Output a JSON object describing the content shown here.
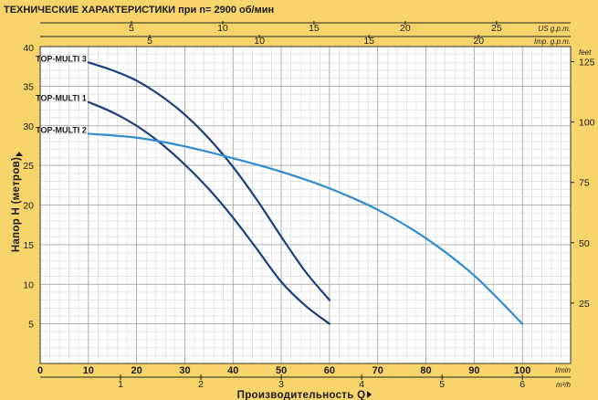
{
  "chart_data": {
    "type": "line",
    "title": "ТЕХНИЧЕСКИЕ ХАРАКТЕРИСТИКИ при n= 2900 об/мин",
    "xlabel": "Производительность Q",
    "ylabel": "Напор H (метров)",
    "x_unit": "l/min",
    "x2_unit": "m³/h",
    "top_axis1_unit": "US g.p.m.",
    "top_axis2_unit": "Imp. g.p.m.",
    "y2_unit": "feet",
    "xlim": [
      0,
      110
    ],
    "ylim": [
      0,
      40
    ],
    "x_ticks": [
      0,
      10,
      20,
      30,
      40,
      50,
      60,
      70,
      80,
      90,
      100
    ],
    "y_ticks": [
      5,
      10,
      15,
      20,
      25,
      30,
      35,
      40
    ],
    "x2_ticks": [
      1,
      2,
      3,
      4,
      5,
      6
    ],
    "top_axis1_ticks": [
      5,
      10,
      15,
      20,
      25
    ],
    "top_axis2_ticks": [
      5,
      10,
      15,
      20
    ],
    "y2_ticks": [
      25,
      50,
      75,
      100,
      125
    ],
    "grid": true,
    "series": [
      {
        "name": "TOP-MULTI 3",
        "color": "#1a3f7a",
        "x": [
          10,
          15,
          20,
          25,
          30,
          35,
          40,
          45,
          50,
          55,
          60
        ],
        "y": [
          38,
          37,
          35.7,
          33.8,
          31.4,
          28.4,
          24.8,
          20.6,
          16,
          11.6,
          8
        ]
      },
      {
        "name": "TOP-MULTI 1",
        "color": "#1a3f7a",
        "x": [
          10,
          15,
          20,
          25,
          30,
          35,
          40,
          45,
          50,
          55,
          60
        ],
        "y": [
          33,
          31.7,
          30,
          27.8,
          25.1,
          22,
          18.4,
          14.4,
          10.3,
          7.3,
          5
        ]
      },
      {
        "name": "TOP-MULTI 2",
        "color": "#2f8cd0",
        "x": [
          10,
          20,
          30,
          40,
          50,
          60,
          70,
          80,
          90,
          100
        ],
        "y": [
          29,
          28.5,
          27.4,
          25.9,
          24.2,
          22.1,
          19.4,
          15.8,
          11.1,
          5
        ]
      }
    ]
  }
}
